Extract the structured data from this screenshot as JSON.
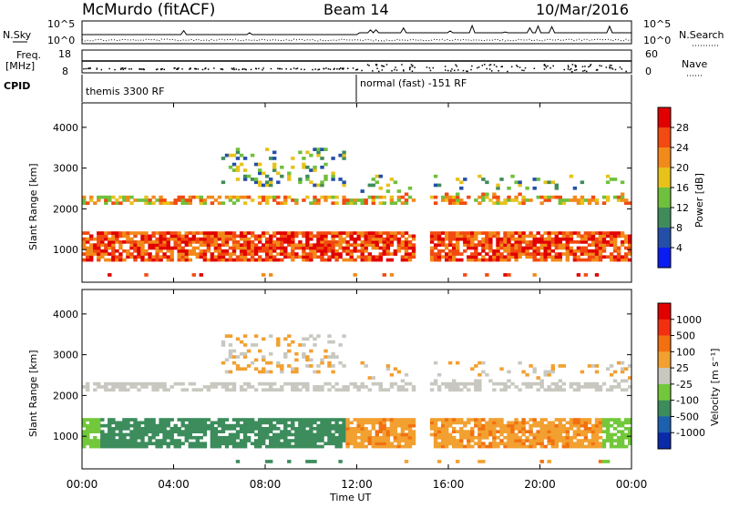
{
  "header": {
    "station": "McMurdo (fitACF)",
    "beam": "Beam 14",
    "date": "10/Mar/2016"
  },
  "noise_panel": {
    "left_label": "N.Sky",
    "right_label": "N.Search",
    "top_tick": "10^5",
    "bottom_tick": "10^0"
  },
  "freq_panel": {
    "left_label_line1": "Freq.",
    "left_label_line2": "[MHz]",
    "left_top_tick": "18",
    "left_bottom_tick": "8",
    "right_label": "Nave",
    "right_top_tick": "60",
    "right_bottom_tick": "0"
  },
  "cpid_panel": {
    "label": "CPID",
    "program_1": "themis 3300 RF",
    "program_2": "normal (fast) -151 RF"
  },
  "chart_data": [
    {
      "type": "heatmap",
      "name": "power",
      "ylabel": "Slant Range [km]",
      "ylim": [
        200,
        4600
      ],
      "yticks": [
        "1000",
        "2000",
        "3000",
        "4000"
      ],
      "colorbar_label": "Power [dB]",
      "colorbar_colors": [
        "#0b1cf2",
        "#244fa8",
        "#3f8c5a",
        "#6fc03c",
        "#e8c21a",
        "#f28a1a",
        "#f24a10",
        "#e00000"
      ],
      "colorbar_ticks": [
        "4",
        "8",
        "12",
        "16",
        "20",
        "24",
        "28"
      ]
    },
    {
      "type": "heatmap",
      "name": "velocity",
      "ylabel": "Slant Range [km]",
      "ylim": [
        200,
        4600
      ],
      "yticks": [
        "1000",
        "2000",
        "3000",
        "4000"
      ],
      "colorbar_label": "Velocity [m s⁻¹]",
      "colorbar_colors": [
        "#0a2aa8",
        "#1e60b0",
        "#3c8c5c",
        "#72c83a",
        "#c8c8c0",
        "#f2a030",
        "#f27010",
        "#f23010",
        "#e00000"
      ],
      "colorbar_ticks": [
        "1000",
        "500",
        "100",
        "25",
        "-25",
        "-100",
        "-500",
        "-1000"
      ]
    }
  ],
  "x_axis": {
    "label": "Time UT",
    "xlim": [
      0,
      24
    ],
    "ticks": [
      "00:00",
      "04:00",
      "08:00",
      "12:00",
      "16:00",
      "20:00",
      "00:00"
    ]
  }
}
